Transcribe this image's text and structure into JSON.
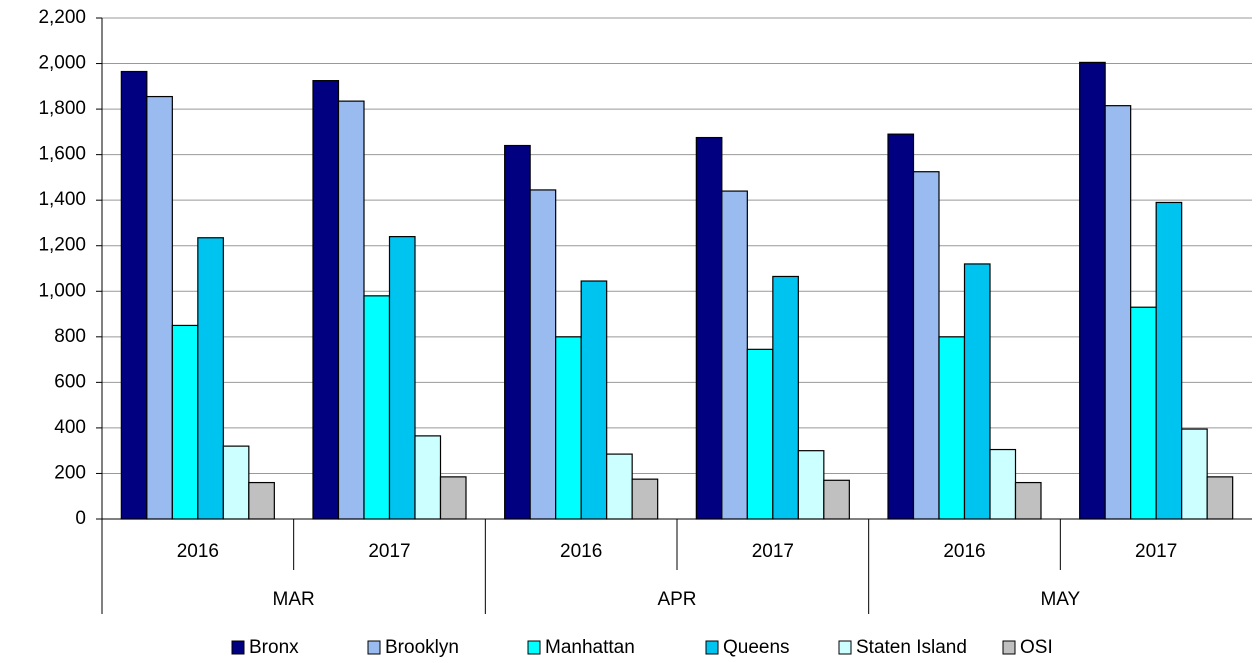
{
  "chart_data": {
    "type": "bar",
    "categories": [
      "2016",
      "2017",
      "2016",
      "2017",
      "2016",
      "2017"
    ],
    "category_groups": [
      "MAR",
      "APR",
      "MAY"
    ],
    "series": [
      {
        "name": "Bronx",
        "color": "#000080",
        "values": [
          1965,
          1925,
          1640,
          1675,
          1690,
          2005
        ]
      },
      {
        "name": "Brooklyn",
        "color": "#99bbf0",
        "values": [
          1855,
          1835,
          1445,
          1440,
          1525,
          1815
        ]
      },
      {
        "name": "Manhattan",
        "color": "#00ffff",
        "values": [
          850,
          980,
          800,
          745,
          800,
          930
        ]
      },
      {
        "name": "Queens",
        "color": "#00c4f0",
        "values": [
          1235,
          1240,
          1045,
          1065,
          1120,
          1390
        ]
      },
      {
        "name": "Staten Island",
        "color": "#ccffff",
        "values": [
          320,
          365,
          285,
          300,
          305,
          395
        ]
      },
      {
        "name": "OSI",
        "color": "#c0c0c0",
        "values": [
          160,
          185,
          175,
          170,
          160,
          185
        ]
      }
    ],
    "ylim": [
      0,
      2200
    ],
    "yticks": [
      0,
      200,
      400,
      600,
      800,
      {
        "value": 1000,
        "label": "1,000"
      },
      {
        "value": 1200,
        "label": "1,200"
      },
      {
        "value": 1400,
        "label": "1,400"
      },
      {
        "value": 1600,
        "label": "1,600"
      },
      {
        "value": 1800,
        "label": "1,800"
      },
      {
        "value": 2000,
        "label": "2,000"
      },
      {
        "value": 2200,
        "label": "2,200"
      }
    ],
    "grid": true,
    "legend": "bottom"
  }
}
